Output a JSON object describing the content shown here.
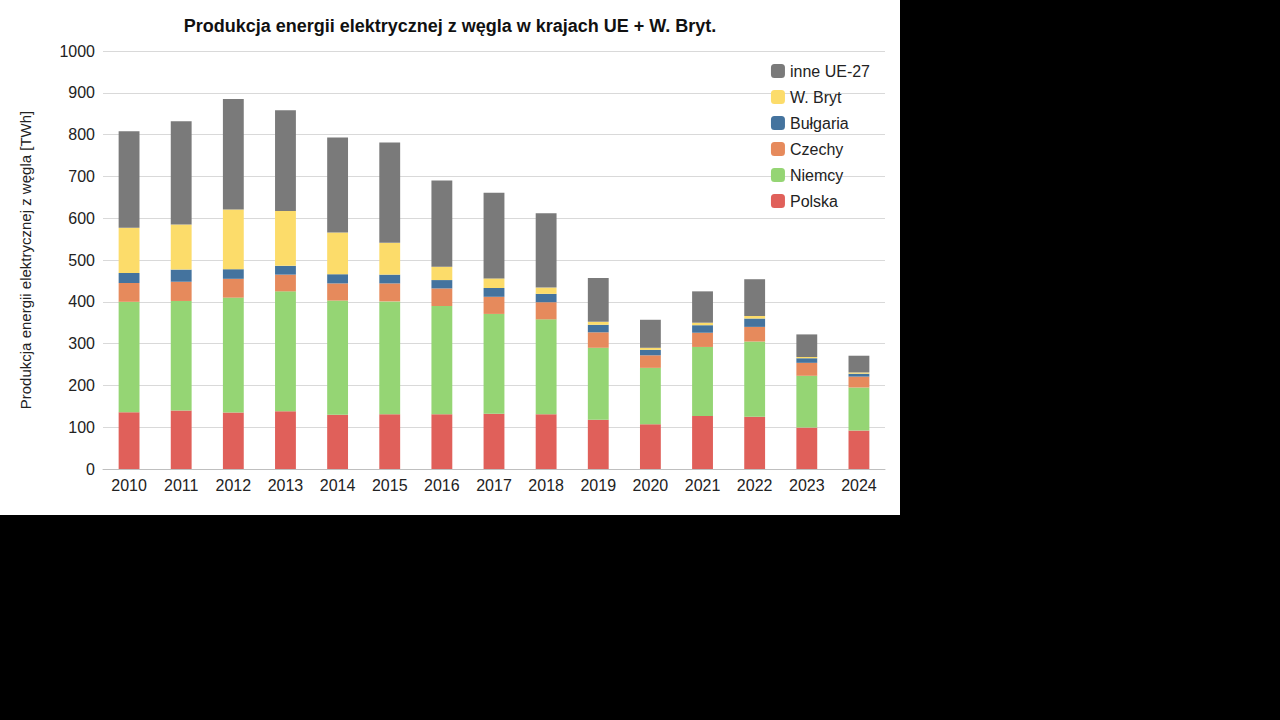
{
  "chart_data": {
    "type": "bar",
    "stacked": true,
    "title": "Produkcja energii elektrycznej z węgla w krajach UE + W. Bryt.",
    "y_label": "Produkcja energii elektrycznej z węgla [TWh]",
    "categories": [
      "2010",
      "2011",
      "2012",
      "2013",
      "2014",
      "2015",
      "2016",
      "2017",
      "2018",
      "2019",
      "2020",
      "2021",
      "2022",
      "2023",
      "2024"
    ],
    "series": [
      {
        "name": "Polska",
        "color": "#e0605a",
        "values": [
          136,
          140,
          135,
          138,
          130,
          131,
          131,
          132,
          131,
          118,
          107,
          127,
          125,
          99,
          92
        ]
      },
      {
        "name": "Niemcy",
        "color": "#95d574",
        "values": [
          264,
          262,
          275,
          287,
          273,
          270,
          259,
          239,
          227,
          172,
          135,
          165,
          180,
          124,
          103
        ]
      },
      {
        "name": "Czechy",
        "color": "#e68a5c",
        "values": [
          45,
          46,
          45,
          40,
          41,
          43,
          42,
          41,
          41,
          37,
          30,
          34,
          35,
          31,
          26
        ]
      },
      {
        "name": "Bułgaria",
        "color": "#44739e",
        "values": [
          24,
          29,
          23,
          21,
          22,
          21,
          20,
          21,
          20,
          18,
          13,
          18,
          20,
          11,
          7
        ]
      },
      {
        "name": "W. Bryt",
        "color": "#fcdc6a",
        "values": [
          108,
          108,
          143,
          131,
          100,
          76,
          32,
          23,
          15,
          7,
          5,
          6,
          6,
          3,
          3
        ]
      },
      {
        "name": "inne UE-27",
        "color": "#7a7a7a",
        "values": [
          231,
          247,
          264,
          241,
          227,
          240,
          206,
          205,
          178,
          105,
          67,
          75,
          88,
          54,
          40
        ]
      }
    ],
    "ylim": [
      0,
      1000
    ],
    "yticks": [
      0,
      100,
      200,
      300,
      400,
      500,
      600,
      700,
      800,
      900,
      1000
    ],
    "grid": true,
    "legend": "upper right"
  }
}
